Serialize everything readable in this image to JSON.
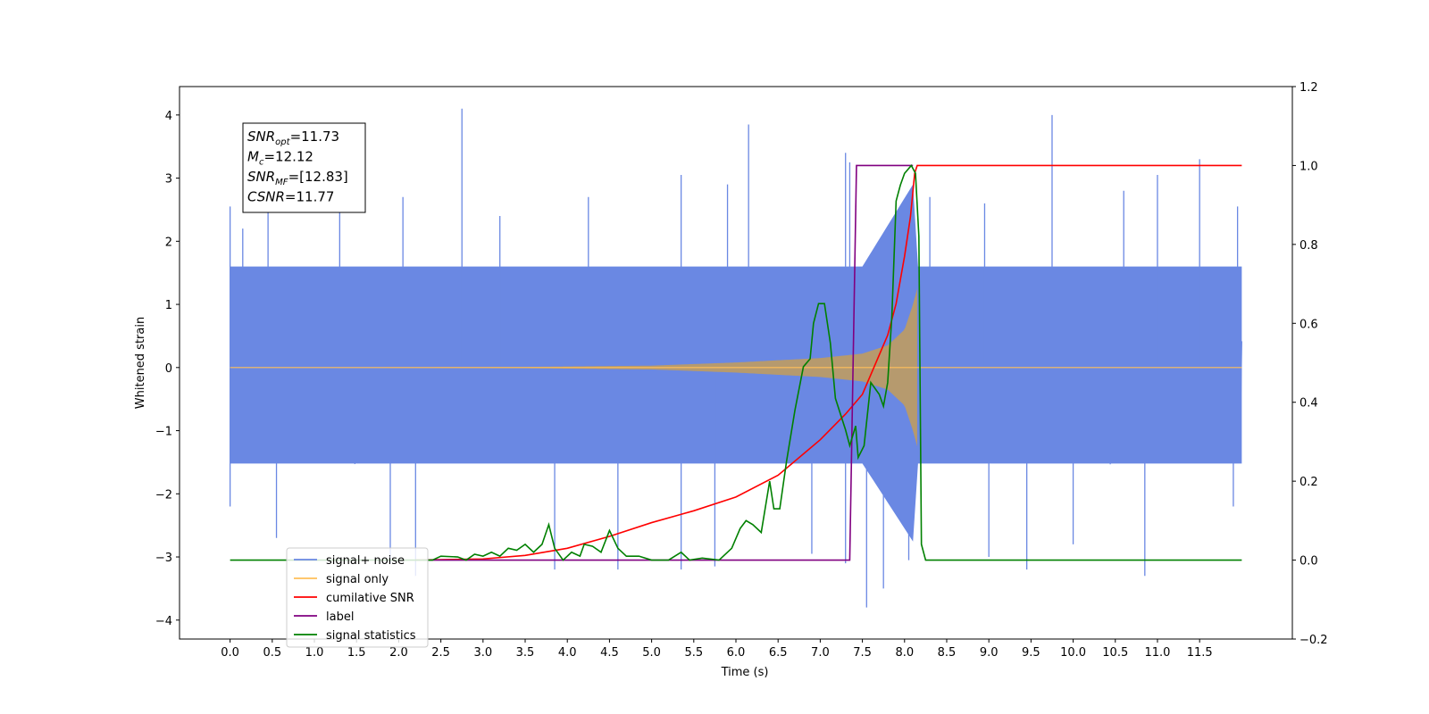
{
  "chart_data": {
    "type": "line",
    "xlabel": "Time (s)",
    "ylabel": "Whitened strain",
    "xlim": [
      -0.6,
      12.6
    ],
    "ylim": [
      -4.3,
      4.45
    ],
    "y2lim": [
      -0.2,
      1.2
    ],
    "x_ticks": [
      0.0,
      0.5,
      1.0,
      1.5,
      2.0,
      2.5,
      3.0,
      3.5,
      4.0,
      4.5,
      5.0,
      5.5,
      6.0,
      6.5,
      7.0,
      7.5,
      8.0,
      8.5,
      9.0,
      9.5,
      10.0,
      10.5,
      11.0,
      11.5
    ],
    "x_tick_labels": [
      "0.0",
      "0.5",
      "1.0",
      "1.5",
      "2.0",
      "2.5",
      "3.0",
      "3.5",
      "4.0",
      "4.5",
      "5.0",
      "5.5",
      "6.0",
      "6.5",
      "7.0",
      "7.5",
      "8.0",
      "8.5",
      "9.0",
      "9.5",
      "10.0",
      "10.5",
      "11.0",
      "11.5"
    ],
    "y_ticks": [
      -4,
      -3,
      -2,
      -1,
      0,
      1,
      2,
      3,
      4
    ],
    "y_tick_labels": [
      "−4",
      "−3",
      "−2",
      "−1",
      "0",
      "1",
      "2",
      "3",
      "4"
    ],
    "y2_ticks": [
      -0.2,
      0.0,
      0.2,
      0.4,
      0.6,
      0.8,
      1.0,
      1.2
    ],
    "y2_tick_labels": [
      "−0.2",
      "0.0",
      "0.2",
      "0.4",
      "0.6",
      "0.8",
      "1.0",
      "1.2"
    ],
    "grid": false,
    "legend_position": "lower-left",
    "annotation": {
      "lines": [
        {
          "base": "SNR",
          "sub": "opt",
          "rest": "=11.73"
        },
        {
          "base": "M",
          "sub": "c",
          "rest": "=12.12"
        },
        {
          "base": "SNR",
          "sub": "MF",
          "rest": "=[12.83]"
        },
        {
          "base": "CSNR",
          "sub": "",
          "rest": "=11.77"
        }
      ]
    },
    "series": [
      {
        "name": "signal+ noise",
        "axis": "left",
        "color": "#6a88e3",
        "kind": "noise_band",
        "x_range": [
          0.0,
          12.0
        ],
        "envelope": [
          [
            0.0,
            1.6
          ],
          [
            7.5,
            1.6
          ],
          [
            8.1,
            2.9
          ],
          [
            8.15,
            1.6
          ],
          [
            12.0,
            1.6
          ]
        ],
        "upper_peaks": [
          [
            0.0,
            2.55
          ],
          [
            0.15,
            2.2
          ],
          [
            0.45,
            2.65
          ],
          [
            1.3,
            2.75
          ],
          [
            2.05,
            2.7
          ],
          [
            2.75,
            4.1
          ],
          [
            3.2,
            2.4
          ],
          [
            4.25,
            2.7
          ],
          [
            5.35,
            3.05
          ],
          [
            5.9,
            2.9
          ],
          [
            6.15,
            3.85
          ],
          [
            7.3,
            3.4
          ],
          [
            7.35,
            3.25
          ],
          [
            8.3,
            2.7
          ],
          [
            8.95,
            2.6
          ],
          [
            9.75,
            4.0
          ],
          [
            10.6,
            2.8
          ],
          [
            11.0,
            3.05
          ],
          [
            11.5,
            3.3
          ],
          [
            11.95,
            2.55
          ]
        ],
        "lower_peaks": [
          [
            0.0,
            -2.2
          ],
          [
            0.55,
            -2.7
          ],
          [
            1.9,
            -3.1
          ],
          [
            2.2,
            -3.3
          ],
          [
            3.85,
            -3.2
          ],
          [
            4.6,
            -3.2
          ],
          [
            5.35,
            -3.2
          ],
          [
            5.75,
            -3.15
          ],
          [
            6.9,
            -2.95
          ],
          [
            7.3,
            -3.1
          ],
          [
            7.55,
            -3.8
          ],
          [
            7.75,
            -3.5
          ],
          [
            8.05,
            -3.05
          ],
          [
            9.0,
            -3.0
          ],
          [
            9.45,
            -3.2
          ],
          [
            10.0,
            -2.8
          ],
          [
            10.85,
            -3.3
          ],
          [
            11.9,
            -2.2
          ]
        ]
      },
      {
        "name": "signal only",
        "axis": "left",
        "color": "#ffbf5a",
        "fill_color": "#b69a6e",
        "kind": "chirp",
        "x_range": [
          0.0,
          12.0
        ],
        "merger_time": 8.15,
        "envelope": [
          [
            0.0,
            0.0
          ],
          [
            3.5,
            0.01
          ],
          [
            5.0,
            0.03
          ],
          [
            6.0,
            0.08
          ],
          [
            7.0,
            0.15
          ],
          [
            7.5,
            0.22
          ],
          [
            7.8,
            0.35
          ],
          [
            8.0,
            0.6
          ],
          [
            8.1,
            1.0
          ],
          [
            8.15,
            1.25
          ],
          [
            8.16,
            0.0
          ],
          [
            12.0,
            0.0
          ]
        ]
      },
      {
        "name": "cumilative SNR",
        "axis": "right",
        "color": "#ff0000",
        "kind": "line",
        "points": [
          [
            2.2,
            0.0
          ],
          [
            3.0,
            0.003
          ],
          [
            3.5,
            0.012
          ],
          [
            4.0,
            0.03
          ],
          [
            4.5,
            0.06
          ],
          [
            5.0,
            0.095
          ],
          [
            5.5,
            0.125
          ],
          [
            6.0,
            0.16
          ],
          [
            6.5,
            0.215
          ],
          [
            7.0,
            0.305
          ],
          [
            7.3,
            0.37
          ],
          [
            7.5,
            0.42
          ],
          [
            7.7,
            0.52
          ],
          [
            7.8,
            0.57
          ],
          [
            7.9,
            0.65
          ],
          [
            8.0,
            0.77
          ],
          [
            8.07,
            0.87
          ],
          [
            8.12,
            0.98
          ],
          [
            8.15,
            1.0
          ],
          [
            12.0,
            1.0
          ]
        ]
      },
      {
        "name": "label",
        "axis": "right",
        "color": "#800080",
        "kind": "line",
        "points": [
          [
            2.3,
            0.0
          ],
          [
            7.35,
            0.0
          ],
          [
            7.43,
            1.0
          ],
          [
            8.1,
            1.0
          ]
        ]
      },
      {
        "name": "signal statistics",
        "axis": "right",
        "color": "#008000",
        "kind": "line",
        "points": [
          [
            0.0,
            0.0
          ],
          [
            2.4,
            0.0
          ],
          [
            2.5,
            0.01
          ],
          [
            2.7,
            0.008
          ],
          [
            2.8,
            0.0
          ],
          [
            2.9,
            0.015
          ],
          [
            3.0,
            0.01
          ],
          [
            3.1,
            0.02
          ],
          [
            3.2,
            0.01
          ],
          [
            3.3,
            0.03
          ],
          [
            3.4,
            0.025
          ],
          [
            3.5,
            0.04
          ],
          [
            3.6,
            0.02
          ],
          [
            3.7,
            0.04
          ],
          [
            3.78,
            0.09
          ],
          [
            3.85,
            0.03
          ],
          [
            3.95,
            0.0
          ],
          [
            4.05,
            0.02
          ],
          [
            4.15,
            0.01
          ],
          [
            4.2,
            0.04
          ],
          [
            4.3,
            0.035
          ],
          [
            4.4,
            0.02
          ],
          [
            4.5,
            0.075
          ],
          [
            4.6,
            0.03
          ],
          [
            4.7,
            0.01
          ],
          [
            4.85,
            0.01
          ],
          [
            5.0,
            0.0
          ],
          [
            5.2,
            0.0
          ],
          [
            5.35,
            0.02
          ],
          [
            5.45,
            0.0
          ],
          [
            5.6,
            0.005
          ],
          [
            5.8,
            0.0
          ],
          [
            5.95,
            0.03
          ],
          [
            6.05,
            0.08
          ],
          [
            6.12,
            0.1
          ],
          [
            6.2,
            0.09
          ],
          [
            6.3,
            0.07
          ],
          [
            6.35,
            0.135
          ],
          [
            6.4,
            0.2
          ],
          [
            6.45,
            0.13
          ],
          [
            6.52,
            0.13
          ],
          [
            6.6,
            0.25
          ],
          [
            6.7,
            0.38
          ],
          [
            6.8,
            0.49
          ],
          [
            6.88,
            0.51
          ],
          [
            6.92,
            0.6
          ],
          [
            6.98,
            0.65
          ],
          [
            7.05,
            0.65
          ],
          [
            7.12,
            0.55
          ],
          [
            7.18,
            0.41
          ],
          [
            7.3,
            0.33
          ],
          [
            7.35,
            0.29
          ],
          [
            7.42,
            0.34
          ],
          [
            7.45,
            0.26
          ],
          [
            7.52,
            0.29
          ],
          [
            7.6,
            0.45
          ],
          [
            7.7,
            0.42
          ],
          [
            7.75,
            0.39
          ],
          [
            7.8,
            0.45
          ],
          [
            7.85,
            0.62
          ],
          [
            7.9,
            0.91
          ],
          [
            7.95,
            0.95
          ],
          [
            8.0,
            0.98
          ],
          [
            8.08,
            1.0
          ],
          [
            8.13,
            0.98
          ],
          [
            8.17,
            0.82
          ],
          [
            8.2,
            0.04
          ],
          [
            8.25,
            0.0
          ],
          [
            12.0,
            0.0
          ]
        ]
      }
    ]
  }
}
